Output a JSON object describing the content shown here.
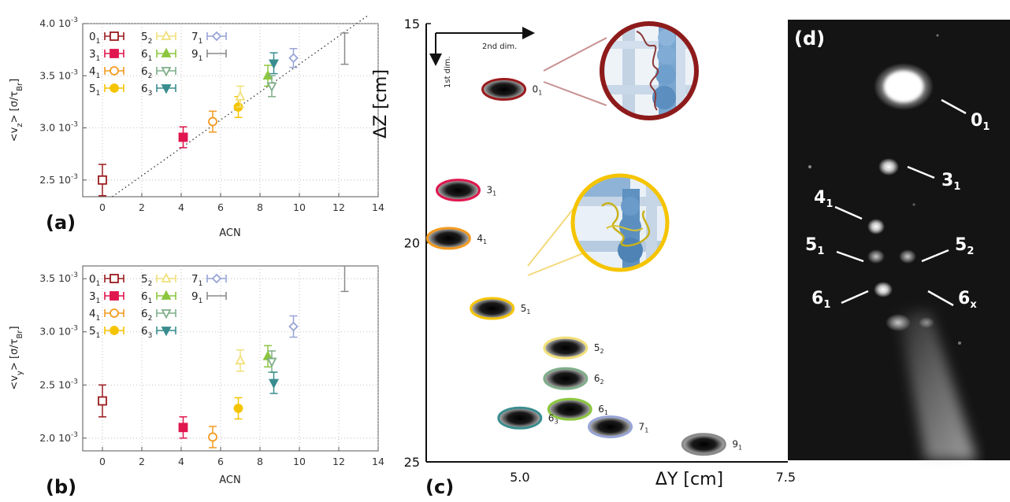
{
  "knot_colors": {
    "0_1": "#9b1b1e",
    "3_1": "#e0174e",
    "4_1": "#f39a1f",
    "5_1": "#f5c400",
    "5_2": "#f1e07a",
    "6_1": "#8cc63f",
    "6_2": "#7fae8a",
    "6_3": "#3a8d8f",
    "7_1": "#98a4d6",
    "9_1": "#8a8a8a"
  },
  "legend": [
    {
      "key": "0_1",
      "base": "0",
      "sub": "1",
      "marker": "square-open"
    },
    {
      "key": "3_1",
      "base": "3",
      "sub": "1",
      "marker": "square"
    },
    {
      "key": "4_1",
      "base": "4",
      "sub": "1",
      "marker": "circle-open"
    },
    {
      "key": "5_1",
      "base": "5",
      "sub": "1",
      "marker": "circle"
    },
    {
      "key": "5_2",
      "base": "5",
      "sub": "2",
      "marker": "triangle-up-open"
    },
    {
      "key": "6_1",
      "base": "6",
      "sub": "1",
      "marker": "triangle-up"
    },
    {
      "key": "6_2",
      "base": "6",
      "sub": "2",
      "marker": "triangle-down-open"
    },
    {
      "key": "6_3",
      "base": "6",
      "sub": "3",
      "marker": "triangle-down"
    },
    {
      "key": "7_1",
      "base": "7",
      "sub": "1",
      "marker": "diamond-open"
    },
    {
      "key": "9_1",
      "base": "9",
      "sub": "1",
      "marker": "line"
    }
  ],
  "chart_data": [
    {
      "panel": "(a)",
      "type": "scatter",
      "xlabel": "ACN",
      "ylabel": "<vz> [σ/τBr]",
      "xlim": [
        -1,
        14
      ],
      "ylim": [
        0.00234,
        0.004
      ],
      "xticks": [
        "0",
        "2",
        "4",
        "6",
        "8",
        "10",
        "12",
        "14"
      ],
      "yticks": [
        {
          "v": 0.0025,
          "m": "2.5",
          "e": "10",
          "p": "-3"
        },
        {
          "v": 0.003,
          "m": "3.0",
          "e": "10",
          "p": "-3"
        },
        {
          "v": 0.0035,
          "m": "3.5",
          "e": "10",
          "p": "-3"
        },
        {
          "v": 0.004,
          "m": "4.0",
          "e": "10",
          "p": "-3"
        }
      ],
      "grid": true,
      "fit_line": {
        "style": "dotted",
        "from": [
          0.5,
          0.00234
        ],
        "to": [
          13.5,
          0.00408
        ]
      },
      "points": [
        {
          "knot": "0_1",
          "x": 0.0,
          "y": 0.0025,
          "err": 0.00015
        },
        {
          "knot": "3_1",
          "x": 4.1,
          "y": 0.00291,
          "err": 0.0001
        },
        {
          "knot": "4_1",
          "x": 5.6,
          "y": 0.00306,
          "err": 0.0001
        },
        {
          "knot": "5_1",
          "x": 6.9,
          "y": 0.0032,
          "err": 0.0001
        },
        {
          "knot": "5_2",
          "x": 7.0,
          "y": 0.0033,
          "err": 0.0001
        },
        {
          "knot": "6_1",
          "x": 8.4,
          "y": 0.0035,
          "err": 0.0001
        },
        {
          "knot": "6_2",
          "x": 8.6,
          "y": 0.0034,
          "err": 0.0001
        },
        {
          "knot": "6_3",
          "x": 8.7,
          "y": 0.00362,
          "err": 0.0001
        },
        {
          "knot": "7_1",
          "x": 9.7,
          "y": 0.00367,
          "err": 9e-05
        },
        {
          "knot": "9_1",
          "x": 12.3,
          "y": 0.00376,
          "err": 0.00015
        }
      ]
    },
    {
      "panel": "(b)",
      "type": "scatter",
      "xlabel": "ACN",
      "ylabel": "<vy> [σ/τBr]",
      "xlim": [
        -1,
        14
      ],
      "ylim": [
        0.00188,
        0.00362
      ],
      "xticks": [
        "0",
        "2",
        "4",
        "6",
        "8",
        "10",
        "12",
        "14"
      ],
      "yticks": [
        {
          "v": 0.002,
          "m": "2.0",
          "e": "10",
          "p": "-3"
        },
        {
          "v": 0.0025,
          "m": "2.5",
          "e": "10",
          "p": "-3"
        },
        {
          "v": 0.003,
          "m": "3.0",
          "e": "10",
          "p": "-3"
        },
        {
          "v": 0.0035,
          "m": "3.5",
          "e": "10",
          "p": "-3"
        }
      ],
      "grid": true,
      "points": [
        {
          "knot": "0_1",
          "x": 0.0,
          "y": 0.00235,
          "err": 0.00015
        },
        {
          "knot": "3_1",
          "x": 4.1,
          "y": 0.0021,
          "err": 0.0001
        },
        {
          "knot": "4_1",
          "x": 5.6,
          "y": 0.00201,
          "err": 0.0001
        },
        {
          "knot": "5_1",
          "x": 6.9,
          "y": 0.00228,
          "err": 0.0001
        },
        {
          "knot": "5_2",
          "x": 7.0,
          "y": 0.00273,
          "err": 0.0001
        },
        {
          "knot": "6_1",
          "x": 8.4,
          "y": 0.00277,
          "err": 0.0001
        },
        {
          "knot": "6_2",
          "x": 8.6,
          "y": 0.00272,
          "err": 0.0001
        },
        {
          "knot": "6_3",
          "x": 8.7,
          "y": 0.00252,
          "err": 0.0001
        },
        {
          "knot": "7_1",
          "x": 9.7,
          "y": 0.00305,
          "err": 0.0001
        },
        {
          "knot": "9_1",
          "x": 12.3,
          "y": 0.0035,
          "err": 0.00012
        }
      ]
    },
    {
      "panel": "(c)",
      "type": "scatter",
      "xlabel": "ΔY [cm]",
      "ylabel": "ΔZ [cm]",
      "xlim": [
        4.12,
        7.52
      ],
      "ylim": [
        15,
        25
      ],
      "xticks": [
        {
          "v": 5.0,
          "label": "5.0"
        },
        {
          "v": 7.5,
          "label": "7.5"
        }
      ],
      "yticks": [
        {
          "v": 15,
          "label": "15"
        },
        {
          "v": 20,
          "label": "20"
        },
        {
          "v": 25,
          "label": "25"
        }
      ],
      "arrow_labels": {
        "horizontal": "2nd dim.",
        "vertical": "1st dim."
      },
      "bands": [
        {
          "knot": "0_1",
          "x": 4.85,
          "y": 16.5
        },
        {
          "knot": "3_1",
          "x": 4.42,
          "y": 18.8
        },
        {
          "knot": "4_1",
          "x": 4.33,
          "y": 19.9
        },
        {
          "knot": "5_1",
          "x": 4.74,
          "y": 21.5
        },
        {
          "knot": "5_2",
          "x": 5.43,
          "y": 22.4
        },
        {
          "knot": "6_2",
          "x": 5.43,
          "y": 23.1
        },
        {
          "knot": "6_1",
          "x": 5.47,
          "y": 23.8
        },
        {
          "knot": "6_3",
          "x": 5.0,
          "y": 24.0
        },
        {
          "knot": "7_1",
          "x": 5.85,
          "y": 24.2
        },
        {
          "knot": "9_1",
          "x": 6.73,
          "y": 24.6
        }
      ]
    }
  ],
  "panel_d": {
    "label": "(d)",
    "bands": [
      {
        "base": "0",
        "sub": "1"
      },
      {
        "base": "3",
        "sub": "1"
      },
      {
        "base": "4",
        "sub": "1"
      },
      {
        "base": "5",
        "sub": "1"
      },
      {
        "base": "5",
        "sub": "2"
      },
      {
        "base": "6",
        "sub": "1"
      },
      {
        "base": "6",
        "sub": "x"
      }
    ]
  }
}
